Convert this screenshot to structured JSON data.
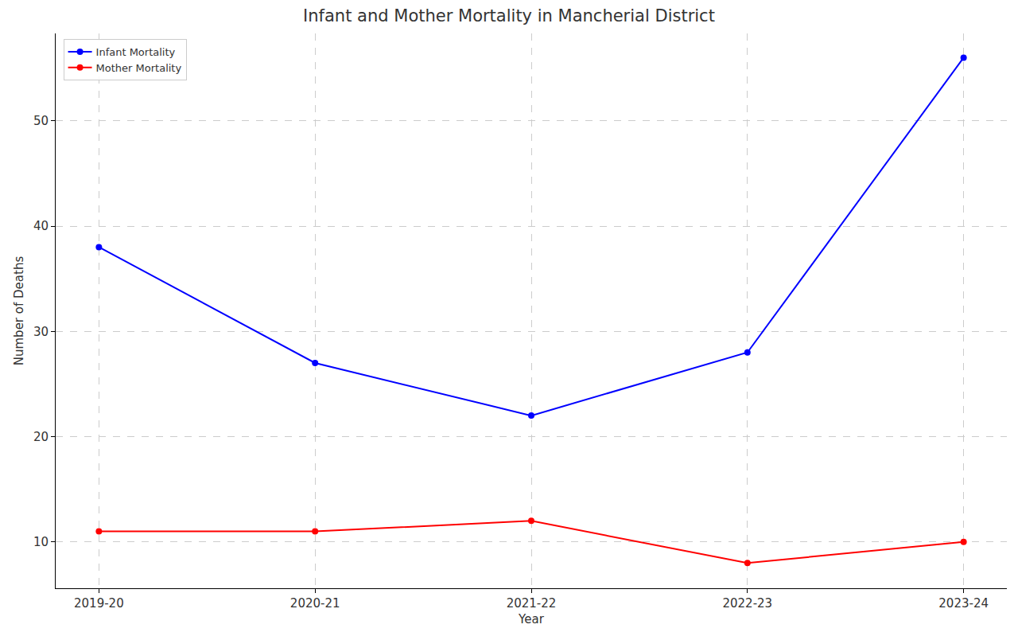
{
  "chart_data": {
    "type": "line",
    "title": "Infant and Mother Mortality in Mancherial District",
    "x_label": "Year",
    "y_label": "Number of Deaths",
    "categories": [
      "2019-20",
      "2020-21",
      "2021-22",
      "2022-23",
      "2023-24"
    ],
    "series": [
      {
        "name": "Infant Mortality",
        "color": "#0000ff",
        "marker": "circle",
        "values": [
          38,
          27,
          22,
          28,
          56
        ]
      },
      {
        "name": "Mother Mortality",
        "color": "#ff0000",
        "marker": "circle",
        "values": [
          11,
          11,
          12,
          8,
          10
        ]
      }
    ],
    "ylim": [
      5.6,
      58.3
    ],
    "yticks": [
      10,
      20,
      30,
      40,
      50
    ],
    "grid": true,
    "legend": "upper left"
  }
}
